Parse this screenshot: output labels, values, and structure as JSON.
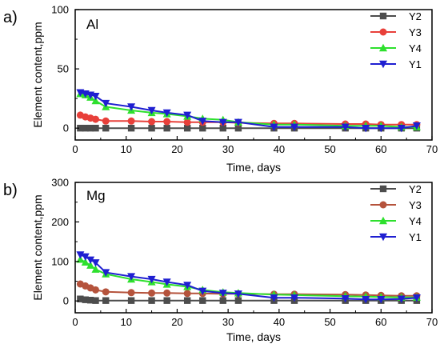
{
  "chart_data": [
    {
      "type": "line",
      "panel_label": "a)",
      "element": "Al",
      "xlabel": "Time, days",
      "ylabel": "Element content,ppm",
      "xlim": [
        0,
        70
      ],
      "ylim": [
        -10,
        100
      ],
      "x_ticks": [
        0,
        10,
        20,
        30,
        40,
        50,
        60,
        70
      ],
      "y_ticks": [
        0,
        50,
        100
      ],
      "legend_position": "top-right",
      "series": [
        {
          "name": "Y2",
          "color": "#4d4d4d",
          "marker": "square",
          "x": [
            1,
            2,
            3,
            4,
            6,
            11,
            15,
            18,
            22,
            25,
            29,
            32,
            39,
            43,
            53,
            57,
            60,
            64,
            67
          ],
          "y": [
            0,
            0,
            0,
            0,
            0,
            0,
            0,
            0,
            0,
            0,
            0,
            0,
            0,
            0,
            0,
            0,
            0,
            0,
            0
          ]
        },
        {
          "name": "Y3",
          "color": "#e8403a",
          "marker": "circle",
          "x": [
            1,
            2,
            3,
            4,
            6,
            11,
            15,
            18,
            22,
            25,
            29,
            32,
            39,
            43,
            53,
            57,
            60,
            64,
            67
          ],
          "y": [
            11,
            9.5,
            8.5,
            7.5,
            6,
            6,
            5.5,
            5.5,
            5,
            5,
            5,
            4.5,
            4,
            4,
            3.5,
            3.5,
            3,
            3,
            3
          ]
        },
        {
          "name": "Y4",
          "color": "#2ee02e",
          "marker": "triangle-up",
          "x": [
            1,
            2,
            3,
            4,
            6,
            11,
            15,
            18,
            22,
            25,
            29,
            32,
            39,
            43,
            53,
            57,
            60,
            64,
            67
          ],
          "y": [
            29,
            28,
            26,
            23,
            18,
            15,
            13,
            12,
            10,
            8,
            7,
            5,
            3,
            3,
            2,
            2,
            2,
            1,
            1
          ]
        },
        {
          "name": "Y1",
          "color": "#1f1fd1",
          "marker": "triangle-down",
          "x": [
            1,
            2,
            3,
            4,
            6,
            11,
            15,
            18,
            22,
            25,
            29,
            32,
            39,
            43,
            53,
            57,
            60,
            64,
            67
          ],
          "y": [
            30,
            29,
            28,
            27,
            21,
            18,
            15,
            13,
            11,
            6,
            5,
            5,
            1,
            1,
            1,
            0,
            0,
            0,
            2
          ]
        }
      ]
    },
    {
      "type": "line",
      "panel_label": "b)",
      "element": "Mg",
      "xlabel": "Time, days",
      "ylabel": "Element content,ppm",
      "xlim": [
        0,
        70
      ],
      "ylim": [
        -30,
        300
      ],
      "x_ticks": [
        0,
        10,
        20,
        30,
        40,
        50,
        60,
        70
      ],
      "y_ticks": [
        0,
        100,
        200,
        300
      ],
      "legend_position": "top-right",
      "series": [
        {
          "name": "Y2",
          "color": "#4d4d4d",
          "marker": "square",
          "x": [
            1,
            2,
            3,
            4,
            6,
            11,
            15,
            18,
            22,
            25,
            29,
            32,
            39,
            43,
            53,
            57,
            60,
            64,
            67
          ],
          "y": [
            5,
            3,
            2,
            1,
            1,
            1,
            1,
            1,
            1,
            1,
            1,
            1,
            1,
            1,
            1,
            1,
            1,
            1,
            1
          ]
        },
        {
          "name": "Y3",
          "color": "#b5533c",
          "marker": "circle",
          "x": [
            1,
            2,
            3,
            4,
            6,
            11,
            15,
            18,
            22,
            25,
            29,
            32,
            39,
            43,
            53,
            57,
            60,
            64,
            67
          ],
          "y": [
            43,
            38,
            33,
            28,
            23,
            21,
            20,
            20,
            19,
            19,
            18,
            18,
            17,
            17,
            16,
            15,
            14,
            13,
            13
          ]
        },
        {
          "name": "Y4",
          "color": "#2ee02e",
          "marker": "triangle-up",
          "x": [
            1,
            2,
            3,
            4,
            6,
            11,
            15,
            18,
            22,
            25,
            29,
            32,
            39,
            43,
            53,
            57,
            60,
            64,
            67
          ],
          "y": [
            105,
            98,
            90,
            80,
            68,
            55,
            48,
            42,
            36,
            28,
            22,
            20,
            16,
            15,
            12,
            11,
            10,
            9,
            9
          ]
        },
        {
          "name": "Y1",
          "color": "#1f1fd1",
          "marker": "triangle-down",
          "x": [
            1,
            2,
            3,
            4,
            6,
            11,
            15,
            18,
            22,
            25,
            29,
            32,
            39,
            43,
            53,
            57,
            60,
            64,
            67
          ],
          "y": [
            117,
            112,
            104,
            97,
            72,
            62,
            55,
            48,
            40,
            25,
            20,
            18,
            8,
            8,
            6,
            4,
            4,
            5,
            8
          ]
        }
      ]
    }
  ]
}
